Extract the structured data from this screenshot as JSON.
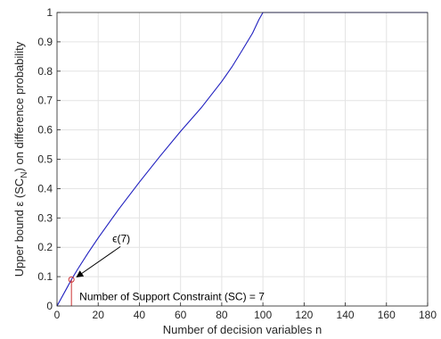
{
  "chart_data": {
    "type": "line",
    "title": "",
    "xlabel": "Number of decision variables n",
    "ylabel": {
      "prefix": "Upper bound ",
      "epsilon": "ε",
      "sc": "SC",
      "sub": "N",
      "suffix": " on difference probability"
    },
    "xlim": [
      0,
      180
    ],
    "ylim": [
      0,
      1
    ],
    "xticks": [
      0,
      20,
      40,
      60,
      80,
      100,
      120,
      140,
      160,
      180
    ],
    "yticks": [
      0,
      0.1,
      0.2,
      0.3,
      0.4,
      0.5,
      0.6,
      0.7,
      0.8,
      0.9,
      1
    ],
    "grid": true,
    "series": [
      {
        "color": "#1f1fbf",
        "x": [
          0,
          5,
          7,
          10,
          15,
          20,
          30,
          40,
          50,
          60,
          70,
          80,
          85,
          90,
          95,
          98,
          100,
          110,
          120,
          140,
          160,
          180
        ],
        "y": [
          0,
          0.064,
          0.09,
          0.125,
          0.18,
          0.232,
          0.33,
          0.422,
          0.51,
          0.595,
          0.675,
          0.765,
          0.815,
          0.872,
          0.93,
          0.975,
          1.0,
          1.0,
          1.0,
          1.0,
          1.0,
          1.0
        ]
      }
    ],
    "marker": {
      "x": 7,
      "y": 0.09,
      "color": "#cc3333"
    },
    "annotations": {
      "epsilon_label": "ϵ(7)",
      "sc_text": "Number of Support Constraint (SC) = 7"
    }
  }
}
